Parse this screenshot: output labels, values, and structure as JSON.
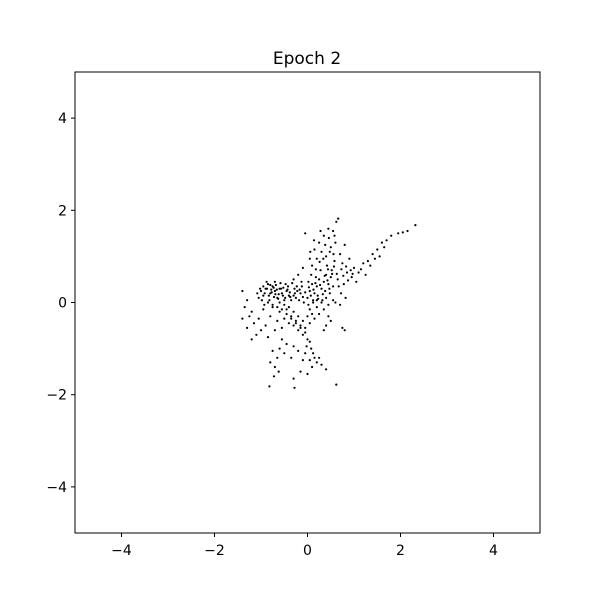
{
  "chart_data": {
    "type": "scatter",
    "title": "Epoch 2",
    "xlabel": "",
    "ylabel": "",
    "xlim": [
      -5,
      5
    ],
    "ylim": [
      -5,
      5
    ],
    "x_ticks": [
      -4,
      -2,
      0,
      2,
      4
    ],
    "y_ticks": [
      -4,
      -2,
      0,
      2,
      4
    ],
    "x_tick_labels": [
      "−4",
      "−2",
      "0",
      "2",
      "4"
    ],
    "y_tick_labels": [
      "−4",
      "−2",
      "0",
      "2",
      "4"
    ],
    "grid": false,
    "legend": "none",
    "marker_color": "#000000",
    "series": [
      {
        "points": [
          [
            -0.9,
            0.3
          ],
          [
            -0.85,
            0.4
          ],
          [
            -0.8,
            0.2
          ],
          [
            -0.95,
            0.15
          ],
          [
            -0.75,
            0.35
          ],
          [
            -0.7,
            0.25
          ],
          [
            -0.65,
            0.1
          ],
          [
            -0.6,
            0.3
          ],
          [
            -0.55,
            0.2
          ],
          [
            -0.5,
            0.05
          ],
          [
            -0.45,
            0.25
          ],
          [
            -0.4,
            0.15
          ],
          [
            -1.0,
            0.25
          ],
          [
            -1.05,
            0.1
          ],
          [
            -0.88,
            0.45
          ],
          [
            -0.82,
            0.05
          ],
          [
            -0.78,
            0.28
          ],
          [
            -0.72,
            0.12
          ],
          [
            -0.68,
            0.38
          ],
          [
            -0.62,
            0.18
          ],
          [
            -0.58,
            0.42
          ],
          [
            -0.52,
            0.32
          ],
          [
            -0.48,
            0.1
          ],
          [
            -0.42,
            0.35
          ],
          [
            -0.38,
            0.22
          ],
          [
            -0.35,
            0.05
          ],
          [
            -0.3,
            0.15
          ],
          [
            -0.28,
            0.3
          ],
          [
            -0.25,
            0.1
          ],
          [
            -0.22,
            0.25
          ],
          [
            -0.18,
            0.05
          ],
          [
            -0.15,
            0.2
          ],
          [
            -0.12,
            0.35
          ],
          [
            -0.1,
            0.12
          ],
          [
            -0.08,
            0.0
          ],
          [
            -0.05,
            0.22
          ],
          [
            0.0,
            0.1
          ],
          [
            0.05,
            0.25
          ],
          [
            0.1,
            0.4
          ],
          [
            0.15,
            0.2
          ],
          [
            0.2,
            0.35
          ],
          [
            0.25,
            0.5
          ],
          [
            0.3,
            0.3
          ],
          [
            0.35,
            0.45
          ],
          [
            0.4,
            0.6
          ],
          [
            0.45,
            0.4
          ],
          [
            0.5,
            0.55
          ],
          [
            0.55,
            0.35
          ],
          [
            0.02,
            0.45
          ],
          [
            0.08,
            0.6
          ],
          [
            0.12,
            0.05
          ],
          [
            0.18,
            0.55
          ],
          [
            0.22,
            0.15
          ],
          [
            0.28,
            0.7
          ],
          [
            0.32,
            0.05
          ],
          [
            0.38,
            0.25
          ],
          [
            0.42,
            0.8
          ],
          [
            0.48,
            0.2
          ],
          [
            0.52,
            0.7
          ],
          [
            0.58,
            0.9
          ],
          [
            0.1,
            0.8
          ],
          [
            0.2,
            0.95
          ],
          [
            0.3,
            1.1
          ],
          [
            0.4,
            1.0
          ],
          [
            0.5,
            1.2
          ],
          [
            0.6,
            1.3
          ],
          [
            0.35,
            1.45
          ],
          [
            0.55,
            1.55
          ],
          [
            0.62,
            1.75
          ],
          [
            0.66,
            1.82
          ],
          [
            0.45,
            1.6
          ],
          [
            -0.05,
            1.5
          ],
          [
            0.25,
            1.3
          ],
          [
            0.15,
            1.15
          ],
          [
            0.05,
            0.95
          ],
          [
            -0.1,
            0.75
          ],
          [
            -0.2,
            0.6
          ],
          [
            -0.3,
            0.5
          ],
          [
            0.7,
            1.05
          ],
          [
            0.8,
            1.25
          ],
          [
            0.75,
            0.85
          ],
          [
            0.85,
            0.65
          ],
          [
            0.9,
            0.95
          ],
          [
            0.95,
            0.55
          ],
          [
            1.0,
            0.75
          ],
          [
            1.1,
            0.65
          ],
          [
            1.05,
            0.45
          ],
          [
            1.2,
            0.85
          ],
          [
            1.3,
            0.9
          ],
          [
            1.4,
            1.05
          ],
          [
            1.5,
            1.15
          ],
          [
            1.6,
            1.3
          ],
          [
            1.55,
            1.0
          ],
          [
            1.7,
            1.35
          ],
          [
            1.8,
            1.45
          ],
          [
            1.95,
            1.5
          ],
          [
            2.05,
            1.52
          ],
          [
            2.15,
            1.55
          ],
          [
            2.32,
            1.68
          ],
          [
            1.65,
            1.2
          ],
          [
            1.25,
            0.6
          ],
          [
            0.65,
            0.5
          ],
          [
            0.72,
            0.2
          ],
          [
            0.78,
            0.4
          ],
          [
            0.82,
            0.1
          ],
          [
            0.6,
            0.0
          ],
          [
            0.7,
            -0.05
          ],
          [
            0.75,
            -0.55
          ],
          [
            0.8,
            -0.6
          ],
          [
            0.4,
            -0.5
          ],
          [
            0.35,
            -0.6
          ],
          [
            0.45,
            -0.3
          ],
          [
            0.5,
            -0.4
          ],
          [
            -1.4,
            0.25
          ],
          [
            -1.3,
            0.05
          ],
          [
            -1.35,
            -0.1
          ],
          [
            -1.25,
            -0.3
          ],
          [
            -1.4,
            -0.35
          ],
          [
            -1.3,
            -0.55
          ],
          [
            -1.2,
            -0.2
          ],
          [
            -1.15,
            -0.45
          ],
          [
            -1.1,
            -0.7
          ],
          [
            -1.2,
            -0.8
          ],
          [
            -1.0,
            -0.6
          ],
          [
            -1.05,
            -0.35
          ],
          [
            -0.95,
            -0.15
          ],
          [
            -0.9,
            -0.5
          ],
          [
            -0.85,
            -0.75
          ],
          [
            -0.8,
            -0.3
          ],
          [
            -0.75,
            -0.1
          ],
          [
            -0.7,
            -0.6
          ],
          [
            -0.65,
            -0.4
          ],
          [
            -0.6,
            -0.2
          ],
          [
            -0.55,
            -0.55
          ],
          [
            -0.5,
            -0.35
          ],
          [
            -0.45,
            -0.15
          ],
          [
            -0.4,
            -0.45
          ],
          [
            -0.35,
            -0.3
          ],
          [
            -0.3,
            -0.5
          ],
          [
            -0.25,
            -0.4
          ],
          [
            -0.2,
            -0.6
          ],
          [
            -0.15,
            -0.55
          ],
          [
            -0.1,
            -0.7
          ],
          [
            -0.05,
            -0.65
          ],
          [
            0.0,
            -0.8
          ],
          [
            0.05,
            -0.85
          ],
          [
            -0.02,
            -0.95
          ],
          [
            0.08,
            -1.0
          ],
          [
            0.12,
            -1.1
          ],
          [
            0.15,
            -1.2
          ],
          [
            0.2,
            -1.3
          ],
          [
            0.05,
            -1.25
          ],
          [
            0.1,
            -1.4
          ],
          [
            -0.05,
            -1.1
          ],
          [
            -0.1,
            -1.25
          ],
          [
            -0.2,
            -1.05
          ],
          [
            -0.3,
            -0.95
          ],
          [
            -0.35,
            -1.2
          ],
          [
            -0.45,
            -0.9
          ],
          [
            -0.5,
            -1.1
          ],
          [
            -0.55,
            -0.8
          ],
          [
            -0.6,
            -1.0
          ],
          [
            -0.65,
            -1.2
          ],
          [
            -0.7,
            -1.4
          ],
          [
            -0.75,
            -1.05
          ],
          [
            -0.8,
            -1.3
          ],
          [
            -0.72,
            -1.6
          ],
          [
            -0.62,
            -1.5
          ],
          [
            -0.82,
            -1.82
          ],
          [
            -0.28,
            -1.85
          ],
          [
            -0.3,
            -1.65
          ],
          [
            -0.15,
            -1.5
          ],
          [
            0.0,
            -1.55
          ],
          [
            0.4,
            -1.45
          ],
          [
            0.62,
            -1.78
          ],
          [
            0.3,
            -1.35
          ],
          [
            0.25,
            -1.2
          ],
          [
            -0.85,
            0.0
          ],
          [
            -0.75,
            -0.05
          ],
          [
            -0.65,
            -0.1
          ],
          [
            -0.55,
            -0.15
          ],
          [
            -0.45,
            -0.25
          ],
          [
            -0.35,
            -0.35
          ],
          [
            -0.25,
            -0.45
          ],
          [
            -0.15,
            -0.5
          ],
          [
            -0.05,
            -0.55
          ],
          [
            0.05,
            -0.45
          ],
          [
            0.15,
            -0.35
          ],
          [
            0.25,
            -0.25
          ],
          [
            0.35,
            -0.15
          ],
          [
            0.45,
            -0.05
          ],
          [
            0.55,
            0.05
          ],
          [
            0.1,
            -0.25
          ],
          [
            0.2,
            -0.1
          ],
          [
            0.3,
            0.0
          ],
          [
            0.4,
            0.1
          ],
          [
            -0.6,
            0.0
          ],
          [
            -0.5,
            -0.05
          ],
          [
            -0.4,
            -0.1
          ],
          [
            -0.3,
            -0.2
          ],
          [
            -0.2,
            -0.3
          ],
          [
            -0.1,
            -0.4
          ],
          [
            0.0,
            -0.3
          ],
          [
            0.05,
            -0.15
          ],
          [
            0.12,
            0.0
          ],
          [
            0.2,
            0.05
          ],
          [
            0.02,
            -0.05
          ],
          [
            -0.95,
            0.35
          ],
          [
            -0.92,
            0.2
          ],
          [
            -0.87,
            0.3
          ],
          [
            -0.83,
            0.15
          ],
          [
            -0.8,
            0.38
          ],
          [
            -0.77,
            0.22
          ],
          [
            -0.73,
            0.32
          ],
          [
            -0.69,
            0.18
          ],
          [
            -0.66,
            0.28
          ],
          [
            -0.63,
            0.08
          ],
          [
            -0.98,
            0.05
          ],
          [
            -1.02,
            0.3
          ],
          [
            -0.93,
            -0.05
          ],
          [
            -1.08,
            0.2
          ],
          [
            -0.7,
            0.45
          ],
          [
            -0.57,
            0.3
          ],
          [
            -0.53,
            0.15
          ],
          [
            -0.47,
            0.4
          ],
          [
            -0.43,
            0.28
          ],
          [
            -0.37,
            0.12
          ],
          [
            -0.33,
            0.42
          ],
          [
            -0.27,
            0.2
          ],
          [
            -0.23,
            0.35
          ],
          [
            -0.17,
            0.28
          ],
          [
            -0.13,
            0.45
          ],
          [
            0.03,
            0.33
          ],
          [
            0.07,
            0.15
          ],
          [
            0.13,
            0.28
          ],
          [
            0.17,
            0.42
          ],
          [
            0.23,
            0.08
          ],
          [
            0.27,
            0.38
          ],
          [
            0.33,
            0.18
          ],
          [
            0.37,
            0.58
          ],
          [
            0.43,
            0.48
          ],
          [
            0.47,
            0.3
          ],
          [
            0.53,
            0.62
          ],
          [
            0.57,
            0.78
          ],
          [
            0.63,
            0.62
          ],
          [
            0.67,
            0.35
          ],
          [
            0.73,
            0.72
          ],
          [
            0.77,
            0.58
          ],
          [
            0.83,
            0.78
          ],
          [
            0.87,
            0.48
          ],
          [
            0.93,
            0.7
          ],
          [
            0.97,
            0.62
          ],
          [
            1.15,
            0.72
          ],
          [
            1.35,
            0.8
          ],
          [
            1.45,
            0.95
          ],
          [
            0.18,
            0.72
          ],
          [
            0.26,
            0.88
          ],
          [
            0.34,
            0.95
          ],
          [
            0.44,
            0.72
          ],
          [
            0.48,
            1.1
          ],
          [
            0.56,
            1.05
          ],
          [
            0.38,
            1.25
          ],
          [
            0.46,
            1.4
          ],
          [
            0.58,
            1.45
          ],
          [
            0.28,
            1.55
          ],
          [
            0.14,
            1.35
          ],
          [
            0.06,
            1.1
          ]
        ]
      }
    ]
  }
}
